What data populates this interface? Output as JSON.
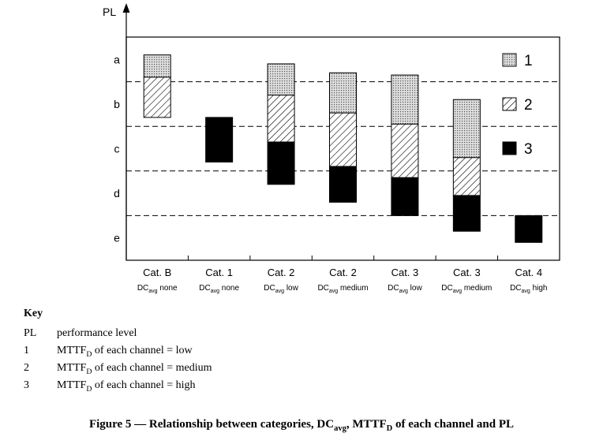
{
  "chart_data": {
    "type": "floating-bar",
    "ylabel": "PL",
    "levels": [
      "a",
      "b",
      "c",
      "d",
      "e"
    ],
    "ylim": [
      0,
      5
    ],
    "level_boundaries": [
      1,
      2,
      3,
      4
    ],
    "categories": [
      {
        "cat": "Cat. B",
        "dc_main": "DC",
        "dc_sub": "avg",
        "dc_suffix": "none"
      },
      {
        "cat": "Cat. 1",
        "dc_main": "DC",
        "dc_sub": "avg",
        "dc_suffix": "none"
      },
      {
        "cat": "Cat. 2",
        "dc_main": "DC",
        "dc_sub": "avg",
        "dc_suffix": "low"
      },
      {
        "cat": "Cat. 2",
        "dc_main": "DC",
        "dc_sub": "avg",
        "dc_suffix": "medium"
      },
      {
        "cat": "Cat. 3",
        "dc_main": "DC",
        "dc_sub": "avg",
        "dc_suffix": "low"
      },
      {
        "cat": "Cat. 3",
        "dc_main": "DC",
        "dc_sub": "avg",
        "dc_suffix": "medium"
      },
      {
        "cat": "Cat. 4",
        "dc_main": "DC",
        "dc_sub": "avg",
        "dc_suffix": "high"
      }
    ],
    "series": [
      {
        "name": "1",
        "pattern": "dotted",
        "ranges": [
          [
            0.4,
            0.9
          ],
          null,
          [
            0.6,
            1.3
          ],
          [
            0.8,
            1.7
          ],
          [
            0.85,
            1.95
          ],
          [
            1.4,
            2.7
          ],
          null
        ]
      },
      {
        "name": "2",
        "pattern": "hatched",
        "ranges": [
          [
            0.9,
            1.8
          ],
          null,
          [
            1.3,
            2.35
          ],
          [
            1.7,
            2.9
          ],
          [
            1.95,
            3.15
          ],
          [
            2.7,
            3.55
          ],
          null
        ]
      },
      {
        "name": "3",
        "pattern": "solid",
        "ranges": [
          null,
          [
            1.8,
            2.8
          ],
          [
            2.35,
            3.3
          ],
          [
            2.9,
            3.7
          ],
          [
            3.15,
            4.0
          ],
          [
            3.55,
            4.35
          ],
          [
            4.0,
            4.6
          ]
        ]
      }
    ],
    "legend": [
      "1",
      "2",
      "3"
    ],
    "legend_position": "right"
  },
  "key": {
    "title": "Key",
    "rows": [
      {
        "sym": "PL",
        "text": "performance level"
      },
      {
        "sym": "1",
        "pre": "MTTF",
        "sub": "D",
        "post": " of each channel = low"
      },
      {
        "sym": "2",
        "pre": "MTTF",
        "sub": "D",
        "post": " of each channel = medium"
      },
      {
        "sym": "3",
        "pre": "MTTF",
        "sub": "D",
        "post": " of each channel = high"
      }
    ]
  },
  "caption": {
    "p1": "Figure 5 — Relationship between categories, DC",
    "s1": "avg",
    "p2": ", MTTF",
    "s2": "D",
    "p3": " of each channel and PL"
  }
}
